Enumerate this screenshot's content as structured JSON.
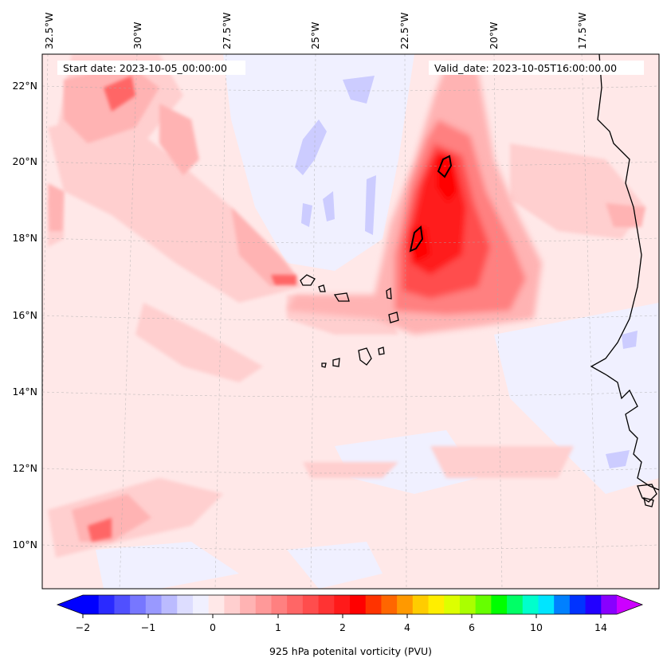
{
  "header": {
    "start_date": "Start date: 2023-10-05_00:00:00",
    "valid_date": "Valid_date: 2023-10-05T16:00:00.00"
  },
  "axes": {
    "lon_labels": [
      "32.5°W",
      "30°W",
      "27.5°W",
      "25°W",
      "22.5°W",
      "20°W",
      "17.5°W"
    ],
    "lat_labels": [
      "22°N",
      "20°N",
      "18°N",
      "16°N",
      "14°N",
      "12°N",
      "10°N"
    ]
  },
  "colorbar": {
    "ticks": [
      "−2",
      "−1",
      "0",
      "1",
      "2",
      "4",
      "6",
      "10",
      "14"
    ],
    "label": "925 hPa potenital vorticity (PVU)",
    "colors": [
      "#0000ff",
      "#2a2aff",
      "#5050ff",
      "#7777ff",
      "#9999ff",
      "#bbbbff",
      "#ddddff",
      "#f0f0ff",
      "#ffe8e8",
      "#ffcfcf",
      "#ffb3b3",
      "#ff9999",
      "#ff8080",
      "#ff6666",
      "#ff4d4d",
      "#ff3333",
      "#ff1a1a",
      "#ff0000",
      "#ff3300",
      "#ff6600",
      "#ff9900",
      "#ffcc00",
      "#ffee00",
      "#ddff00",
      "#aaff00",
      "#66ff00",
      "#00ff00",
      "#00ff66",
      "#00ffcc",
      "#00e5ff",
      "#0080ff",
      "#0033ff",
      "#2200ff",
      "#8800ff"
    ],
    "extend_low": "#0000ff",
    "extend_high": "#cc00ff"
  },
  "colors": {
    "background_field": "#ffe8e8",
    "coastline": "#000000"
  }
}
